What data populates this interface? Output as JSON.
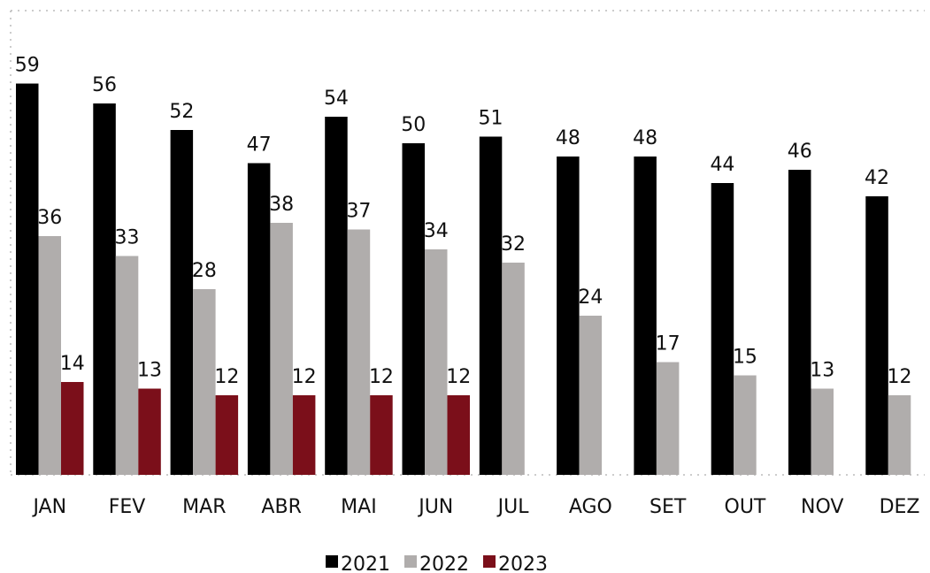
{
  "chart_data": {
    "type": "bar",
    "categories": [
      "JAN",
      "FEV",
      "MAR",
      "ABR",
      "MAI",
      "JUN",
      "JUL",
      "AGO",
      "SET",
      "OUT",
      "NOV",
      "DEZ"
    ],
    "series": [
      {
        "name": "2021",
        "color": "#000000",
        "values": [
          59,
          56,
          52,
          47,
          54,
          50,
          51,
          48,
          48,
          44,
          46,
          42
        ]
      },
      {
        "name": "2022",
        "color": "#b0adac",
        "values": [
          36,
          33,
          28,
          38,
          37,
          34,
          32,
          24,
          17,
          15,
          13,
          12
        ]
      },
      {
        "name": "2023",
        "color": "#7b0f1a",
        "values": [
          14,
          13,
          12,
          12,
          12,
          12,
          null,
          null,
          null,
          null,
          null,
          null
        ]
      }
    ],
    "ylim": [
      0,
      70
    ],
    "legend": "bottom"
  }
}
